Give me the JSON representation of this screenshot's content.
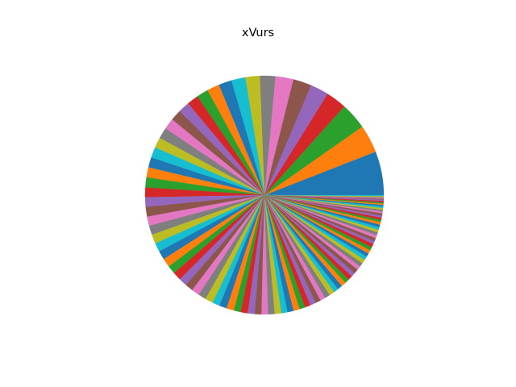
{
  "chart_data": {
    "type": "pie",
    "title": "xVurs",
    "start_angle_deg": 0,
    "direction": "counterclockwise",
    "colors": [
      "#1f77b4",
      "#ff7f0e",
      "#2ca02c",
      "#d62728",
      "#9467bd",
      "#8c564b",
      "#e377c2",
      "#7f7f7f",
      "#bcbd22",
      "#17becf"
    ],
    "values": [
      10.0,
      6.4,
      6.1,
      4.7,
      4.2,
      4.2,
      4.1,
      3.5,
      3.3,
      3.2,
      3.0,
      2.8,
      2.7,
      2.6,
      2.6,
      2.5,
      2.5,
      2.5,
      2.4,
      2.4,
      2.3,
      2.3,
      2.3,
      2.2,
      2.2,
      2.2,
      2.1,
      2.1,
      2.1,
      2.0,
      2.0,
      2.0,
      1.9,
      1.9,
      1.9,
      1.8,
      1.8,
      1.8,
      1.8,
      1.7,
      1.7,
      1.7,
      1.6,
      1.6,
      1.6,
      1.5,
      1.5,
      1.5,
      1.5,
      1.4,
      1.4,
      1.4,
      1.3,
      1.3,
      1.3,
      1.2,
      1.2,
      1.2,
      1.2,
      1.1,
      1.1,
      1.1,
      1.0,
      1.0,
      1.0,
      1.0,
      0.9,
      0.9,
      0.9,
      0.9,
      0.8,
      0.8,
      0.8,
      0.8,
      0.7,
      0.7,
      0.7,
      0.7,
      0.6,
      0.6,
      0.6,
      0.6,
      0.5,
      0.5,
      0.5,
      0.5,
      0.4,
      0.4,
      0.4,
      0.4,
      0.3,
      0.3,
      0.3,
      0.3,
      0.3,
      0.2,
      0.2,
      0.2,
      0.2,
      0.2
    ]
  }
}
